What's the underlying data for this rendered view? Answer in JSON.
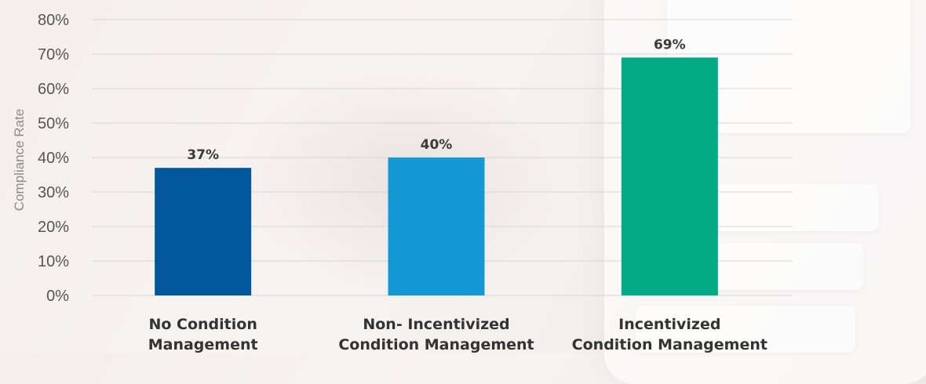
{
  "chart_data": {
    "type": "bar",
    "categories": [
      [
        "No Condition",
        "Management"
      ],
      [
        "Non- Incentivized",
        "Condition Management"
      ],
      [
        "Incentivized",
        "Condition Management"
      ]
    ],
    "values": [
      37,
      40,
      69
    ],
    "value_labels": [
      "37%",
      "40%",
      "69%"
    ],
    "colors": [
      "#02589b",
      "#1599d6",
      "#02ab86"
    ],
    "ylabel": "Compliance Rate",
    "ylim": [
      0,
      80
    ],
    "yticks": [
      0,
      10,
      20,
      30,
      40,
      50,
      60,
      70,
      80
    ],
    "ytick_labels": [
      "0%",
      "10%",
      "20%",
      "30%",
      "40%",
      "50%",
      "60%",
      "70%",
      "80%"
    ],
    "grid": true,
    "legend": "none"
  }
}
